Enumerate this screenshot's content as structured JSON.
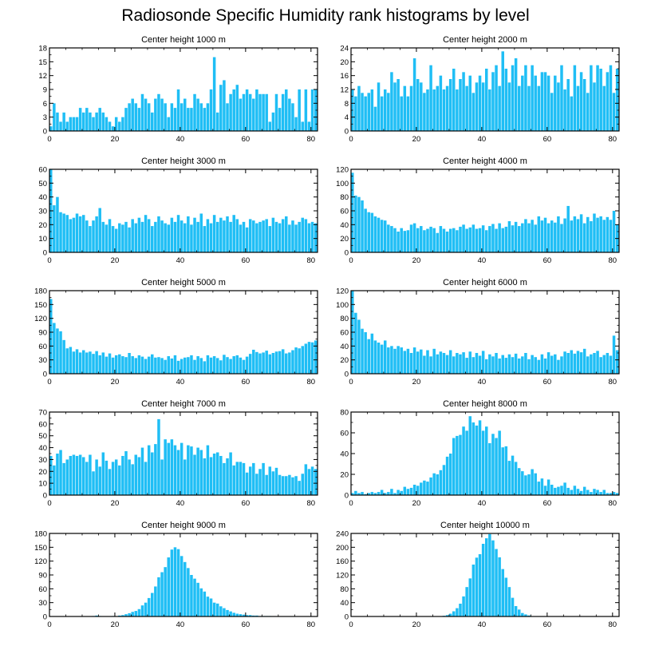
{
  "title": "Radiosonde Specific Humidity rank histograms by level",
  "colors": {
    "bar": "#1fbef5",
    "axis": "#000000"
  },
  "chart_data": [
    {
      "type": "bar",
      "title": "Center height 1000 m",
      "xlim": [
        0,
        82
      ],
      "ylim": [
        0,
        18
      ],
      "xticks": [
        0,
        20,
        40,
        60,
        80
      ],
      "yticks": [
        0,
        3,
        6,
        9,
        12,
        15,
        18
      ],
      "values": [
        1,
        6,
        4,
        2,
        4,
        2,
        3,
        3,
        3,
        5,
        4,
        5,
        4,
        3,
        4,
        5,
        4,
        3,
        2,
        1,
        3,
        2,
        3,
        5,
        6,
        7,
        6,
        5,
        8,
        7,
        6,
        4,
        7,
        8,
        7,
        6,
        3,
        6,
        5,
        9,
        6,
        7,
        5,
        5,
        8,
        7,
        6,
        5,
        6,
        9,
        16,
        4,
        10,
        11,
        6,
        8,
        9,
        10,
        7,
        8,
        9,
        8,
        7,
        9,
        8,
        8,
        8,
        2,
        4,
        8,
        5,
        8,
        9,
        7,
        6,
        3,
        9,
        2,
        9,
        2,
        9,
        9
      ]
    },
    {
      "type": "bar",
      "title": "Center height 2000 m",
      "xlim": [
        0,
        82
      ],
      "ylim": [
        0,
        24
      ],
      "xticks": [
        0,
        20,
        40,
        60,
        80
      ],
      "yticks": [
        0,
        4,
        8,
        12,
        16,
        20,
        24
      ],
      "values": [
        12,
        10,
        13,
        11,
        10,
        11,
        12,
        7,
        14,
        10,
        12,
        11,
        17,
        14,
        15,
        10,
        13,
        10,
        13,
        21,
        15,
        14,
        11,
        12,
        19,
        12,
        13,
        16,
        12,
        13,
        15,
        18,
        12,
        15,
        17,
        13,
        16,
        11,
        14,
        16,
        14,
        18,
        12,
        17,
        19,
        13,
        23,
        18,
        14,
        19,
        21,
        13,
        16,
        19,
        13,
        19,
        16,
        13,
        17,
        17,
        16,
        11,
        16,
        14,
        19,
        12,
        15,
        10,
        19,
        13,
        17,
        15,
        11,
        19,
        14,
        19,
        18,
        13,
        17,
        19,
        11,
        18
      ]
    },
    {
      "type": "bar",
      "title": "Center height 3000 m",
      "xlim": [
        0,
        82
      ],
      "ylim": [
        0,
        60
      ],
      "xticks": [
        0,
        20,
        40,
        60,
        80
      ],
      "yticks": [
        0,
        10,
        20,
        30,
        40,
        50,
        60
      ],
      "values": [
        60,
        34,
        40,
        29,
        28,
        27,
        24,
        25,
        28,
        26,
        27,
        23,
        19,
        23,
        26,
        32,
        22,
        20,
        24,
        19,
        17,
        21,
        20,
        22,
        18,
        24,
        21,
        25,
        22,
        27,
        24,
        19,
        22,
        26,
        23,
        21,
        20,
        25,
        22,
        27,
        23,
        21,
        26,
        20,
        25,
        22,
        28,
        19,
        24,
        21,
        27,
        22,
        25,
        23,
        26,
        22,
        27,
        24,
        20,
        22,
        18,
        24,
        23,
        21,
        22,
        23,
        24,
        19,
        25,
        22,
        21,
        24,
        26,
        20,
        23,
        20,
        22,
        25,
        24,
        21,
        22,
        21
      ]
    },
    {
      "type": "bar",
      "title": "Center height 4000 m",
      "xlim": [
        0,
        82
      ],
      "ylim": [
        0,
        120
      ],
      "xticks": [
        0,
        20,
        40,
        60,
        80
      ],
      "yticks": [
        0,
        20,
        40,
        60,
        80,
        100,
        120
      ],
      "values": [
        115,
        82,
        80,
        75,
        63,
        58,
        57,
        52,
        50,
        47,
        46,
        40,
        38,
        35,
        30,
        35,
        31,
        32,
        40,
        42,
        35,
        38,
        32,
        34,
        37,
        35,
        28,
        38,
        34,
        30,
        34,
        35,
        32,
        37,
        40,
        34,
        36,
        40,
        34,
        35,
        39,
        32,
        38,
        41,
        34,
        42,
        35,
        37,
        45,
        39,
        44,
        38,
        42,
        48,
        42,
        47,
        40,
        52,
        46,
        50,
        42,
        46,
        43,
        52,
        41,
        49,
        67,
        46,
        52,
        48,
        55,
        42,
        51,
        45,
        56,
        50,
        52,
        47,
        51,
        47,
        60,
        40
      ]
    },
    {
      "type": "bar",
      "title": "Center height 5000 m",
      "xlim": [
        0,
        82
      ],
      "ylim": [
        0,
        180
      ],
      "xticks": [
        0,
        20,
        40,
        60,
        80
      ],
      "yticks": [
        0,
        30,
        60,
        90,
        120,
        150,
        180
      ],
      "values": [
        162,
        110,
        98,
        92,
        73,
        55,
        58,
        48,
        53,
        46,
        51,
        46,
        48,
        43,
        49,
        40,
        46,
        37,
        44,
        35,
        40,
        42,
        38,
        36,
        45,
        38,
        34,
        40,
        37,
        32,
        37,
        42,
        35,
        36,
        34,
        30,
        38,
        33,
        40,
        28,
        32,
        35,
        36,
        40,
        30,
        38,
        34,
        27,
        40,
        35,
        38,
        34,
        29,
        41,
        36,
        32,
        38,
        40,
        35,
        30,
        37,
        43,
        52,
        47,
        44,
        46,
        50,
        42,
        45,
        48,
        49,
        53,
        44,
        46,
        51,
        57,
        55,
        60,
        65,
        69,
        68,
        72
      ]
    },
    {
      "type": "bar",
      "title": "Center height 6000 m",
      "xlim": [
        0,
        82
      ],
      "ylim": [
        0,
        120
      ],
      "xticks": [
        0,
        20,
        40,
        60,
        80
      ],
      "yticks": [
        0,
        20,
        40,
        60,
        80,
        100,
        120
      ],
      "values": [
        120,
        88,
        78,
        65,
        60,
        50,
        58,
        48,
        45,
        42,
        48,
        38,
        40,
        36,
        40,
        38,
        33,
        36,
        30,
        38,
        32,
        35,
        26,
        34,
        25,
        36,
        28,
        32,
        30,
        27,
        34,
        25,
        30,
        28,
        31,
        23,
        32,
        24,
        30,
        26,
        33,
        21,
        28,
        25,
        30,
        22,
        27,
        23,
        28,
        24,
        29,
        22,
        25,
        30,
        21,
        27,
        24,
        20,
        28,
        22,
        31,
        26,
        28,
        20,
        25,
        32,
        30,
        34,
        29,
        33,
        31,
        36,
        25,
        28,
        30,
        33,
        24,
        27,
        30,
        26,
        55,
        34
      ]
    },
    {
      "type": "bar",
      "title": "Center height 7000 m",
      "xlim": [
        0,
        82
      ],
      "ylim": [
        0,
        70
      ],
      "xticks": [
        0,
        20,
        40,
        60,
        80
      ],
      "yticks": [
        0,
        10,
        20,
        30,
        40,
        50,
        60,
        70
      ],
      "values": [
        33,
        25,
        35,
        38,
        27,
        30,
        33,
        34,
        33,
        34,
        32,
        28,
        34,
        20,
        30,
        24,
        36,
        29,
        22,
        28,
        30,
        25,
        33,
        37,
        30,
        26,
        34,
        32,
        40,
        28,
        42,
        36,
        43,
        64,
        30,
        47,
        44,
        47,
        42,
        38,
        44,
        30,
        42,
        41,
        34,
        40,
        38,
        31,
        42,
        32,
        35,
        36,
        33,
        27,
        31,
        36,
        25,
        28,
        28,
        27,
        19,
        24,
        27,
        18,
        22,
        27,
        17,
        24,
        20,
        23,
        17,
        16,
        16,
        17,
        15,
        16,
        12,
        18,
        26,
        22,
        24,
        22
      ]
    },
    {
      "type": "bar",
      "title": "Center height 8000 m",
      "xlim": [
        0,
        82
      ],
      "ylim": [
        0,
        80
      ],
      "xticks": [
        0,
        20,
        40,
        60,
        80
      ],
      "yticks": [
        0,
        20,
        40,
        60,
        80
      ],
      "values": [
        2,
        4,
        2,
        3,
        1,
        2,
        3,
        2,
        3,
        5,
        2,
        3,
        6,
        2,
        5,
        4,
        8,
        6,
        7,
        10,
        9,
        12,
        14,
        13,
        17,
        21,
        20,
        24,
        29,
        37,
        40,
        55,
        57,
        58,
        66,
        62,
        76,
        70,
        67,
        72,
        62,
        66,
        50,
        59,
        55,
        62,
        46,
        47,
        33,
        38,
        32,
        26,
        23,
        19,
        20,
        25,
        21,
        13,
        16,
        9,
        15,
        10,
        7,
        8,
        9,
        12,
        7,
        5,
        9,
        6,
        4,
        8,
        5,
        3,
        6,
        5,
        3,
        5,
        2,
        2,
        3,
        2
      ]
    },
    {
      "type": "bar",
      "title": "Center height 9000 m",
      "xlim": [
        0,
        82
      ],
      "ylim": [
        0,
        180
      ],
      "xticks": [
        0,
        20,
        40,
        60,
        80
      ],
      "yticks": [
        0,
        30,
        60,
        90,
        120,
        150,
        180
      ],
      "values": [
        0,
        0,
        0,
        0,
        0,
        0,
        0,
        0,
        0,
        0,
        0,
        0,
        0,
        1,
        2,
        1,
        0,
        0,
        0,
        1,
        0,
        2,
        3,
        5,
        7,
        10,
        12,
        16,
        24,
        30,
        40,
        51,
        65,
        85,
        96,
        107,
        128,
        145,
        150,
        146,
        131,
        118,
        105,
        90,
        82,
        73,
        61,
        54,
        43,
        39,
        30,
        28,
        22,
        18,
        14,
        11,
        8,
        6,
        5,
        4,
        3,
        3,
        2,
        2,
        1,
        1,
        1,
        1,
        0,
        0,
        0,
        0,
        0,
        0,
        0,
        0,
        0,
        0,
        0,
        0,
        0,
        0
      ]
    },
    {
      "type": "bar",
      "title": "Center height 10000 m",
      "xlim": [
        0,
        82
      ],
      "ylim": [
        0,
        240
      ],
      "xticks": [
        0,
        20,
        40,
        60,
        80
      ],
      "yticks": [
        0,
        40,
        80,
        120,
        160,
        200,
        240
      ],
      "values": [
        0,
        0,
        0,
        0,
        0,
        0,
        0,
        0,
        0,
        0,
        0,
        0,
        0,
        0,
        0,
        0,
        0,
        0,
        0,
        0,
        0,
        0,
        0,
        0,
        0,
        0,
        0,
        1,
        2,
        4,
        8,
        15,
        24,
        37,
        58,
        85,
        110,
        150,
        170,
        180,
        210,
        226,
        238,
        220,
        195,
        171,
        137,
        112,
        85,
        54,
        30,
        20,
        10,
        6,
        3,
        1,
        1,
        0,
        0,
        0,
        0,
        0,
        0,
        0,
        0,
        0,
        0,
        0,
        0,
        0,
        0,
        0
      ]
    }
  ]
}
